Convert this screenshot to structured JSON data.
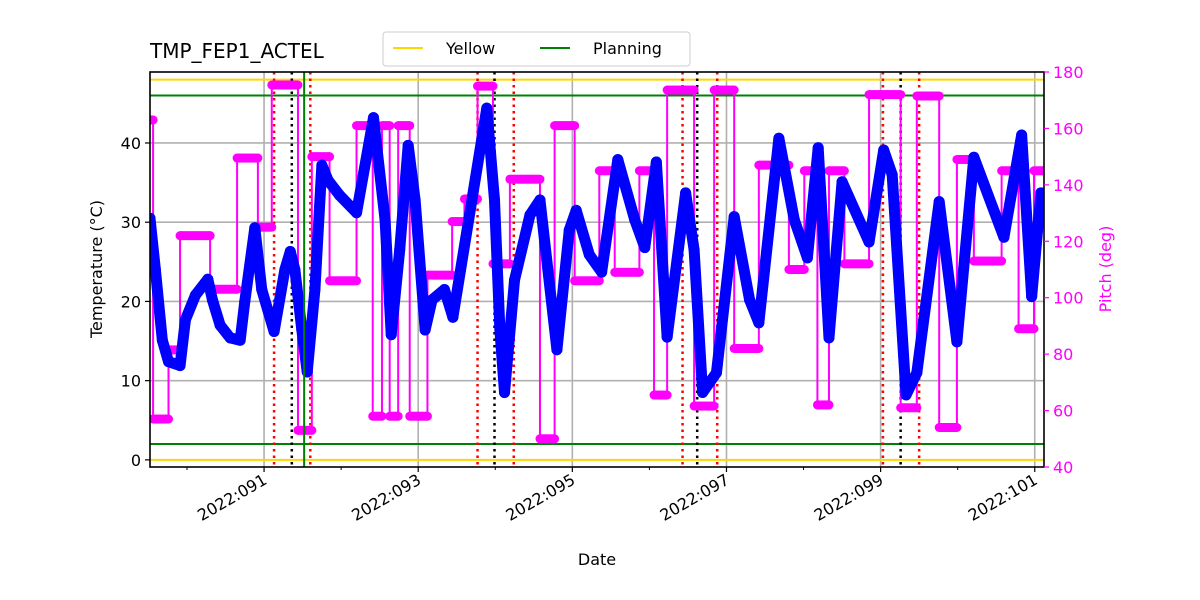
{
  "chart_data": {
    "type": "line",
    "title": "TMP_FEP1_ACTEL",
    "xlabel": "Date",
    "ylabel": "Temperature (°C)",
    "y2label": "Pitch (deg)",
    "xlim": [
      89.52,
      101.12
    ],
    "ylim": [
      -0.9,
      48.96
    ],
    "y2lim": [
      40,
      180
    ],
    "grid": true,
    "legend_placement": "top-center",
    "x_ticks": [
      91,
      93,
      95,
      97,
      99,
      101
    ],
    "x_tick_labels": [
      "2022:091",
      "2022:093",
      "2022:095",
      "2022:097",
      "2022:099",
      "2022:101"
    ],
    "x_minor_ticks": [
      90,
      92,
      94,
      96,
      98,
      100
    ],
    "y_ticks": [
      0,
      10,
      20,
      30,
      40
    ],
    "y_tick_labels": [
      "0",
      "10",
      "20",
      "30",
      "40"
    ],
    "y2_ticks": [
      40,
      60,
      80,
      100,
      120,
      140,
      160,
      180
    ],
    "y2_tick_labels": [
      "40",
      "60",
      "80",
      "100",
      "120",
      "140",
      "160",
      "180"
    ],
    "limit_lines": [
      {
        "name": "Yellow",
        "color": "#ffd700",
        "values": [
          48,
          0
        ]
      },
      {
        "name": "Planning",
        "color": "#008000",
        "values": [
          46,
          2
        ]
      }
    ],
    "legend": [
      {
        "label": "Yellow",
        "color": "#ffd700"
      },
      {
        "label": "Planning",
        "color": "#008000"
      }
    ],
    "vlines_green": [
      91.52
    ],
    "vlines_red_dotted": [
      91.13,
      91.6,
      93.77,
      94.24,
      96.43,
      96.88,
      99.03,
      99.5
    ],
    "vlines_black_dotted": [
      91.36,
      93.99,
      96.62,
      99.26
    ],
    "temperature": {
      "color": "#0000ff",
      "x": [
        89.52,
        89.59,
        89.68,
        89.76,
        89.91,
        89.98,
        90.11,
        90.27,
        90.33,
        90.43,
        90.56,
        90.69,
        90.75,
        90.88,
        90.97,
        91.13,
        91.27,
        91.34,
        91.4,
        91.49,
        91.56,
        91.66,
        91.75,
        91.83,
        91.98,
        92.2,
        92.42,
        92.57,
        92.65,
        92.76,
        92.87,
        92.96,
        93.09,
        93.18,
        93.34,
        93.45,
        93.89,
        93.99,
        94.06,
        94.12,
        94.25,
        94.45,
        94.58,
        94.8,
        94.96,
        95.05,
        95.22,
        95.38,
        95.59,
        95.81,
        95.94,
        96.09,
        96.23,
        96.47,
        96.58,
        96.69,
        96.87,
        97.1,
        97.3,
        97.42,
        97.68,
        97.88,
        98.05,
        98.19,
        98.33,
        98.5,
        98.85,
        99.04,
        99.15,
        99.33,
        99.47,
        99.76,
        99.99,
        100.21,
        100.6,
        100.83,
        100.96,
        101.08
      ],
      "y": [
        30.5,
        24,
        15.1,
        12.4,
        11.9,
        17.7,
        20.8,
        22.8,
        20.2,
        17,
        15.4,
        15.1,
        20,
        29.3,
        21.5,
        16.2,
        24,
        26.3,
        24,
        16.4,
        11.1,
        21.5,
        37.2,
        35.3,
        33.4,
        31.2,
        43.2,
        30.3,
        15.8,
        26.5,
        39.7,
        32.8,
        16.4,
        20.2,
        21.5,
        18,
        44.4,
        32.8,
        16.4,
        8.5,
        22.7,
        30.9,
        32.8,
        13.9,
        29,
        31.5,
        25.9,
        23.7,
        37.9,
        30.3,
        26.8,
        37.6,
        15.5,
        33.7,
        26.5,
        8.5,
        11,
        30.7,
        20.2,
        17.3,
        40.6,
        30.3,
        25.5,
        39.4,
        15.4,
        35.1,
        27.5,
        39.1,
        36,
        8.2,
        11,
        32.6,
        14.9,
        38.2,
        28.1,
        41,
        20.6,
        33.7
      ]
    },
    "pitch": {
      "color": "#ff00ff",
      "axis": "right",
      "step_x": [
        89.52,
        89.56,
        89.76,
        89.91,
        90.3,
        90.65,
        90.92,
        91.1,
        91.44,
        91.62,
        91.85,
        92.2,
        92.41,
        92.53,
        92.63,
        92.74,
        92.89,
        93.12,
        93.44,
        93.6,
        93.77,
        93.97,
        94.19,
        94.58,
        94.77,
        95.03,
        95.35,
        95.55,
        95.87,
        96.06,
        96.23,
        96.58,
        96.84,
        97.1,
        97.42,
        97.81,
        98.01,
        98.18,
        98.33,
        98.53,
        98.85,
        99.26,
        99.47,
        99.76,
        99.99,
        100.21,
        100.57,
        100.79,
        100.99,
        101.12
      ],
      "values": [
        163,
        57,
        81.5,
        122,
        103,
        149.5,
        125,
        175.4,
        53,
        150,
        106,
        161,
        58,
        161,
        58,
        161,
        58,
        108,
        127,
        135,
        175,
        112,
        142,
        50,
        161,
        106,
        145,
        109,
        145,
        65.5,
        173.6,
        61.6,
        173.6,
        82,
        147,
        110,
        145,
        62,
        145,
        112,
        172,
        61,
        171.5,
        54,
        149,
        113,
        145,
        89,
        145,
        145
      ]
    }
  }
}
